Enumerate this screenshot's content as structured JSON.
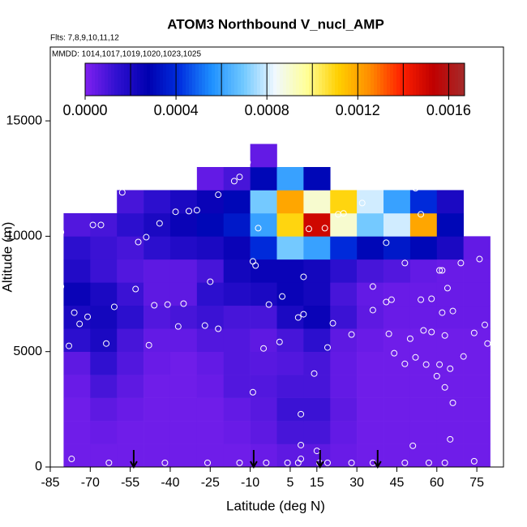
{
  "chart_data": {
    "type": "heatmap",
    "title": "ATOM3 Northbound V_nucl_AMP",
    "subtitle": "Flts: 7,8,9,10,11,12",
    "annotation": "MMDD: 1014,1017,1019,1020,1023,1025",
    "xlabel": "Latitude (deg N)",
    "ylabel": "Altitude (m)",
    "xlim": [
      -85,
      85
    ],
    "ylim": [
      0,
      18200
    ],
    "xticks": [
      -85,
      -70,
      -55,
      -40,
      -25,
      -10,
      5,
      15,
      30,
      45,
      60,
      75
    ],
    "yticks": [
      0,
      5000,
      10000,
      15000
    ],
    "lat_edges": [
      -80,
      -70,
      -60,
      -50,
      -40,
      -30,
      -20,
      -10,
      0,
      10,
      20,
      30,
      40,
      50,
      60,
      70,
      80
    ],
    "alt_edges": [
      0,
      1000,
      2000,
      3000,
      4000,
      5000,
      6000,
      7000,
      8000,
      9000,
      10000,
      11000,
      12000,
      13000,
      14000
    ],
    "z": [
      [
        3e-05,
        3e-05,
        3e-05,
        3e-05,
        3e-05,
        3e-05,
        3e-05,
        4e-05,
        6e-05,
        6e-05,
        4e-05,
        3e-05,
        3e-05,
        3e-05,
        3e-05,
        3e-05
      ],
      [
        3e-05,
        4e-05,
        3e-05,
        3e-05,
        3e-05,
        3e-05,
        4e-05,
        6e-05,
        0.0001,
        0.0001,
        5e-05,
        3e-05,
        3e-05,
        3e-05,
        3e-05,
        3e-05
      ],
      [
        3e-05,
        6e-05,
        4e-05,
        3e-05,
        3e-05,
        3e-05,
        5e-05,
        7e-05,
        0.00012,
        0.00012,
        6e-05,
        3e-05,
        3e-05,
        3e-05,
        3e-05,
        3e-05
      ],
      [
        4e-05,
        0.0001,
        6e-05,
        3e-05,
        3e-05,
        4e-05,
        8e-05,
        8e-05,
        0.0001,
        0.0001,
        5e-05,
        3e-05,
        3e-05,
        3e-05,
        3e-05,
        3e-05
      ],
      [
        6e-05,
        0.00014,
        8e-05,
        4e-05,
        3e-05,
        5e-05,
        8e-05,
        7e-05,
        8e-05,
        0.0001,
        5e-05,
        3e-05,
        3e-05,
        3e-05,
        3e-05,
        3e-05
      ],
      [
        0.00015,
        0.0002,
        0.0001,
        5e-05,
        5e-05,
        8e-05,
        8e-05,
        6e-05,
        0.0001,
        0.00015,
        6e-05,
        4e-05,
        3e-05,
        3e-05,
        3e-05,
        3e-05
      ],
      [
        0.0002,
        0.00022,
        0.00015,
        8e-05,
        0.0001,
        0.00012,
        0.0001,
        0.0001,
        0.0002,
        0.00025,
        0.00012,
        6e-05,
        4e-05,
        4e-05,
        4e-05,
        4e-05
      ],
      [
        0.00025,
        0.0002,
        0.00012,
        6e-05,
        6e-05,
        0.00015,
        0.00018,
        0.0002,
        0.00025,
        0.00022,
        0.0001,
        5e-05,
        4e-05,
        4e-05,
        4e-05,
        4e-05
      ],
      [
        0.00018,
        0.00012,
        8e-05,
        6e-05,
        6e-05,
        0.0001,
        0.00022,
        0.00025,
        0.00025,
        0.00022,
        0.00015,
        0.0001,
        8e-05,
        5e-05,
        4e-05,
        4e-05
      ],
      [
        0.00015,
        0.00012,
        0.0001,
        0.00015,
        0.00018,
        0.0002,
        0.00025,
        0.0004,
        0.0007,
        0.0006,
        0.0004,
        0.0003,
        0.00035,
        0.0003,
        0.0002,
        5e-05
      ],
      [
        8e-05,
        0.0001,
        0.00015,
        0.0002,
        0.00025,
        0.0003,
        0.00035,
        0.0006,
        0.0011,
        0.0015,
        0.0009,
        0.0007,
        0.0008,
        0.0012,
        0.0003,
        null
      ],
      [
        null,
        null,
        0.0001,
        0.00015,
        0.0002,
        0.00025,
        0.0003,
        0.0007,
        0.0012,
        0.0009,
        0.0011,
        0.0008,
        0.0006,
        0.0004,
        0.0002,
        null
      ],
      [
        null,
        null,
        null,
        null,
        null,
        5e-05,
        0.0001,
        0.0003,
        0.0006,
        0.0003,
        null,
        null,
        null,
        null,
        null,
        null
      ],
      [
        null,
        null,
        null,
        null,
        null,
        null,
        null,
        5e-05,
        null,
        null,
        null,
        null,
        null,
        null,
        null,
        null
      ]
    ],
    "points": {
      "x": [
        -81,
        -69,
        -66,
        -58,
        -52,
        -49,
        -44,
        -38,
        -33,
        -30,
        -22,
        -16,
        -14,
        -11,
        -81,
        -76,
        -74,
        -71,
        -64,
        -61,
        -53,
        -46,
        -41,
        -37,
        -35,
        -27,
        -25,
        -22,
        -9,
        -8,
        -7,
        -3,
        1,
        2,
        8,
        10,
        10,
        12,
        14,
        18,
        21,
        23,
        25,
        32,
        38,
        41,
        54,
        52,
        48,
        61,
        62,
        69,
        76,
        -9,
        9,
        9,
        15,
        9,
        8,
        16,
        -77,
        -63,
        -42,
        -26,
        -14,
        -4,
        4,
        19,
        28,
        36,
        48,
        57,
        63,
        74,
        51,
        65,
        66,
        63,
        60,
        65,
        61,
        48,
        52,
        56,
        44,
        70,
        79,
        74,
        78,
        66,
        62,
        54,
        58,
        43,
        50,
        55,
        58,
        63,
        42,
        36,
        36,
        28,
        19,
        -5,
        -48,
        -78,
        64,
        41
      ],
      "y": [
        10180,
        10490,
        10490,
        11900,
        9750,
        9960,
        10560,
        11060,
        11090,
        11130,
        11800,
        12390,
        12570,
        13200,
        7820,
        6690,
        6200,
        6510,
        5350,
        6940,
        7710,
        7010,
        7040,
        6090,
        7080,
        6130,
        8030,
        5990,
        8910,
        8730,
        10350,
        7040,
        5420,
        7390,
        6480,
        6620,
        8240,
        10320,
        4050,
        10350,
        6230,
        10950,
        10990,
        11440,
        12220,
        9720,
        10950,
        12080,
        8840,
        8520,
        8520,
        8840,
        9010,
        3240,
        2290,
        950,
        700,
        350,
        180,
        180,
        350,
        180,
        180,
        180,
        180,
        180,
        180,
        180,
        180,
        180,
        180,
        180,
        180,
        250,
        920,
        1200,
        2780,
        3450,
        3940,
        4260,
        4440,
        4470,
        4750,
        4440,
        4930,
        4790,
        5350,
        5810,
        6160,
        6760,
        6690,
        7250,
        7290,
        7250,
        5560,
        5920,
        5850,
        5700,
        5770,
        6800,
        7820,
        5740,
        5180,
        5140,
        5280,
        5250,
        7750,
        7150
      ]
    },
    "markers_x": [
      -53.7,
      -8.7,
      16.2,
      37.8
    ],
    "colorbar": {
      "lim": [
        0,
        0.00167
      ],
      "ticks": [
        {
          "value": 0,
          "label": "0.0000"
        },
        0.0004,
        0.0008,
        0.0012,
        0.0016
      ],
      "breaks": [
        0.0002,
        0.0004,
        0.0006,
        0.0008,
        0.001,
        0.0012,
        0.0014,
        0.0016
      ],
      "colors": [
        "#8020f0",
        "#3010d0",
        "#0000b0",
        "#0030e0",
        "#1e90ff",
        "#70c8ff",
        "#f0f8ff",
        "#ffff99",
        "#ffd000",
        "#ff8c00",
        "#ff2000",
        "#c00000",
        "#a52a2a"
      ]
    }
  }
}
